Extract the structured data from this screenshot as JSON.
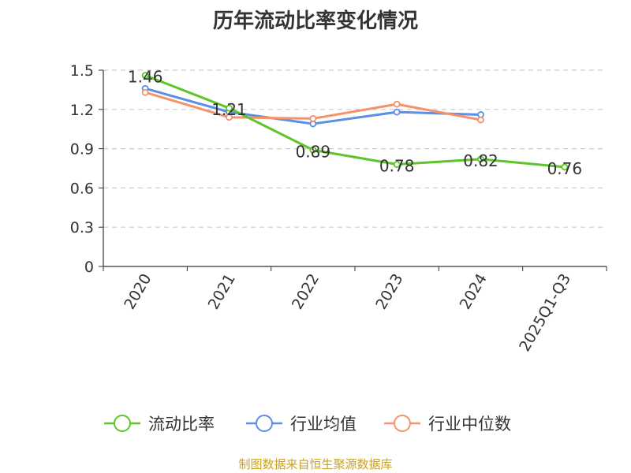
{
  "chart_data": {
    "type": "line",
    "title": "历年流动比率变化情况",
    "categories": [
      "2020",
      "2021",
      "2022",
      "2023",
      "2024",
      "2025Q1-Q3"
    ],
    "ylim": [
      0,
      1.5
    ],
    "yticks": [
      "0",
      "0.3",
      "0.6",
      "0.9",
      "1.2",
      "1.5"
    ],
    "grid": true,
    "legend_position": "bottom",
    "series": [
      {
        "name": "流动比率",
        "color": "#5cc52a",
        "values": [
          1.46,
          1.21,
          0.89,
          0.78,
          0.82,
          0.76
        ],
        "data_labels": [
          "1.46",
          "1.21",
          "0.89",
          "0.78",
          "0.82",
          "0.76"
        ]
      },
      {
        "name": "行业均值",
        "color": "#5b8ee6",
        "values": [
          1.36,
          1.18,
          1.09,
          1.18,
          1.16,
          null
        ]
      },
      {
        "name": "行业中位数",
        "color": "#f5926a",
        "values": [
          1.33,
          1.14,
          1.13,
          1.24,
          1.12,
          null
        ]
      }
    ]
  },
  "source": "制图数据来自恒生聚源数据库"
}
